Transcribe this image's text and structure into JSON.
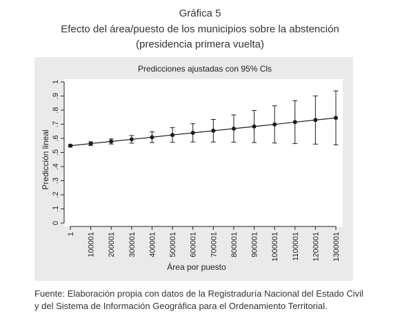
{
  "header": {
    "figure_label": "Gráfica 5",
    "title_line1": "Efecto del área/puesto de los municipios sobre la abstención",
    "title_line2": "(presidencia primera vuelta)"
  },
  "footer": {
    "source_line1": "Fuente: Elaboración propia con datos de la Registraduría Nacional del Estado Civil",
    "source_line2": "y del Sistema de Información Geográfica para el Ordenamiento Territorial."
  },
  "colors": {
    "panel_background": "#eaeaea",
    "plot_background": "#ffffff",
    "series": "#1a1a1a"
  },
  "chart_data": {
    "type": "line",
    "title": "Predicciones ajustadas con 95% Cls",
    "xlabel": "Área por puesto",
    "ylabel": "Predicción lineal",
    "x": [
      1,
      100001,
      200001,
      300001,
      400001,
      500001,
      600001,
      700001,
      800001,
      900001,
      1000001,
      1100001,
      1200001,
      1300001
    ],
    "xtick_labels": [
      "1",
      "100001",
      "200001",
      "300001",
      "400001",
      "500001",
      "600001",
      "700001",
      "800001",
      "900001",
      "1000001",
      "1100001",
      "1200001",
      "1300001"
    ],
    "ylim": [
      0,
      1
    ],
    "yticks": [
      0,
      0.1,
      0.2,
      0.3,
      0.4,
      0.5,
      0.6,
      0.7,
      0.8,
      0.9,
      1
    ],
    "ytick_labels": [
      "0",
      ".1",
      ".2",
      ".3",
      ".4",
      ".5",
      ".6",
      ".7",
      ".8",
      ".9",
      "1"
    ],
    "series": [
      {
        "values": [
          0.548,
          0.563,
          0.578,
          0.593,
          0.608,
          0.624,
          0.639,
          0.654,
          0.669,
          0.684,
          0.699,
          0.715,
          0.73,
          0.745
        ],
        "ci_lower": [
          0.54,
          0.55,
          0.56,
          0.566,
          0.57,
          0.572,
          0.574,
          0.574,
          0.572,
          0.57,
          0.567,
          0.563,
          0.559,
          0.554
        ],
        "ci_upper": [
          0.556,
          0.576,
          0.596,
          0.62,
          0.646,
          0.676,
          0.704,
          0.734,
          0.766,
          0.798,
          0.831,
          0.867,
          0.901,
          0.936
        ]
      }
    ],
    "grid": false,
    "legend": "none"
  }
}
